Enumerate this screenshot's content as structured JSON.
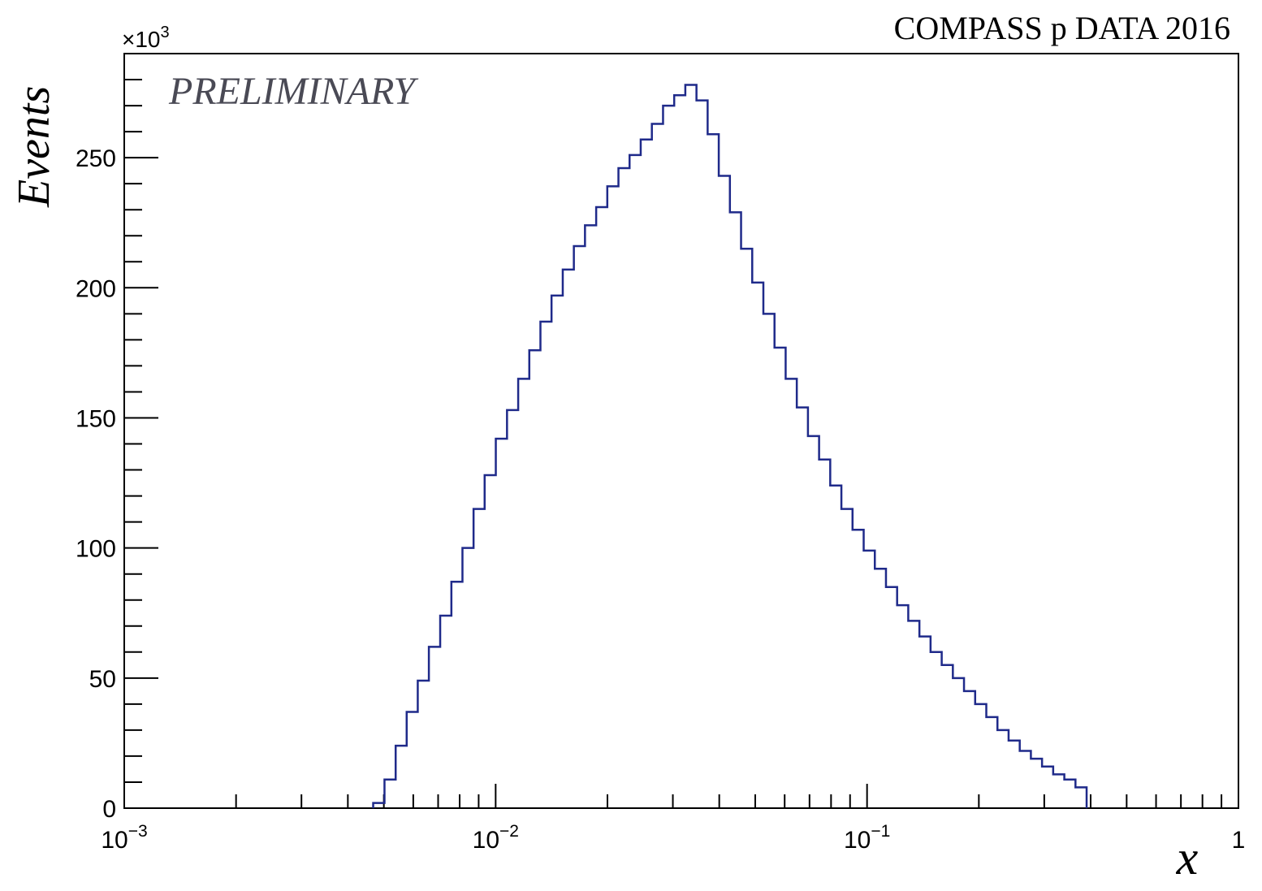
{
  "chart_data": {
    "type": "histogram",
    "title": "COMPASS p DATA 2016",
    "annotation": "PRELIMINARY",
    "xlabel": "x",
    "ylabel": "Events",
    "y_multiplier_label": "×10",
    "y_multiplier_exp": "3",
    "x_scale": "log",
    "xlim": [
      0.001,
      1
    ],
    "ylim": [
      0,
      290
    ],
    "grid": false,
    "x_ticks": [
      {
        "value": 0.001,
        "base": "10",
        "exp": "−3"
      },
      {
        "value": 0.01,
        "base": "10",
        "exp": "−2"
      },
      {
        "value": 0.1,
        "base": "10",
        "exp": "−1"
      },
      {
        "value": 1,
        "base": "1",
        "exp": ""
      }
    ],
    "y_ticks": [
      0,
      50,
      100,
      150,
      200,
      250
    ],
    "series": [
      {
        "color": "#1f2a8a",
        "bin_edges": [
          0.00468,
          0.00502,
          0.00538,
          0.00576,
          0.00617,
          0.00661,
          0.00709,
          0.0076,
          0.00814,
          0.00872,
          0.00934,
          0.01001,
          0.01073,
          0.0115,
          0.01232,
          0.0132,
          0.01414,
          0.01516,
          0.01624,
          0.0174,
          0.01865,
          0.01998,
          0.02141,
          0.02294,
          0.02458,
          0.02634,
          0.02823,
          0.03025,
          0.03241,
          0.03473,
          0.03722,
          0.03988,
          0.04273,
          0.04579,
          0.04907,
          0.05258,
          0.05634,
          0.06037,
          0.06469,
          0.06932,
          0.07428,
          0.07959,
          0.08529,
          0.09139,
          0.09793,
          0.10494,
          0.11245,
          0.12049,
          0.12911,
          0.13835,
          0.14825,
          0.15886,
          0.17023,
          0.18241,
          0.19546,
          0.20945,
          0.22443,
          0.24049,
          0.2577,
          0.27614,
          0.2959,
          0.31707,
          0.33976,
          0.36407,
          0.39012
        ],
        "values": [
          2,
          11,
          24,
          37,
          49,
          62,
          74,
          87,
          100,
          115,
          128,
          142,
          153,
          165,
          176,
          187,
          197,
          207,
          216,
          224,
          231,
          239,
          246,
          251,
          257,
          263,
          270,
          274,
          278,
          272,
          259,
          243,
          229,
          215,
          202,
          190,
          177,
          165,
          154,
          143,
          134,
          124,
          115,
          107,
          99,
          92,
          85,
          78,
          72,
          66,
          60,
          55,
          50,
          45,
          40,
          35,
          30,
          26,
          22,
          19,
          16,
          13,
          11,
          8
        ]
      }
    ]
  }
}
